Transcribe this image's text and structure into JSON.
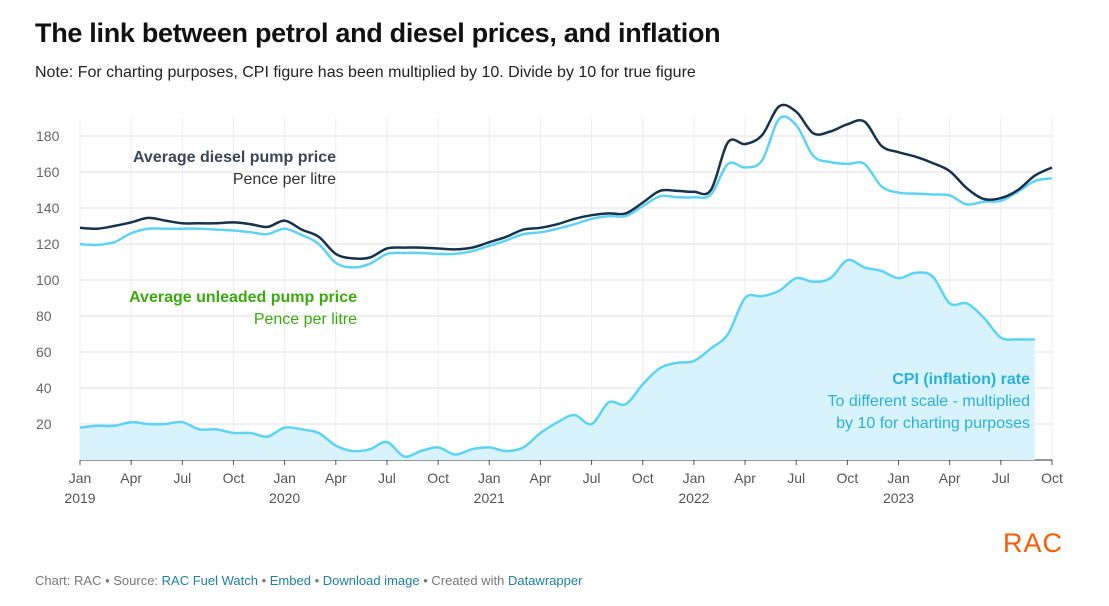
{
  "title": "The link between petrol and diesel prices, and inflation",
  "subtitle": "Note: For charting purposes, CPI figure has been multiplied by 10. Divide by 10 for true figure",
  "footer": {
    "prefix": "Chart: RAC • Source: ",
    "source_link": "RAC Fuel Watch",
    "sep1": " • ",
    "embed": "Embed",
    "sep2": " • ",
    "download": "Download image",
    "sep3": " • Created with ",
    "datawrapper": "Datawrapper"
  },
  "logo": "RAC",
  "colors": {
    "diesel": "#17324d",
    "unleaded": "#5ed3f6",
    "cpi_line": "#5ed3f6",
    "cpi_fill": "#d8f3fc",
    "unleaded_label": "#3aaa0f",
    "cpi_label": "#2ab0da"
  },
  "chart_data": {
    "type": "line",
    "ylim": [
      0,
      190
    ],
    "yticks": [
      20,
      40,
      60,
      80,
      100,
      120,
      140,
      160,
      180
    ],
    "xlim": [
      0,
      57
    ],
    "xticks": [
      {
        "m": 0,
        "label": "Jan",
        "year": "2019"
      },
      {
        "m": 3,
        "label": "Apr",
        "year": ""
      },
      {
        "m": 6,
        "label": "Jul",
        "year": ""
      },
      {
        "m": 9,
        "label": "Oct",
        "year": ""
      },
      {
        "m": 12,
        "label": "Jan",
        "year": "2020"
      },
      {
        "m": 15,
        "label": "Apr",
        "year": ""
      },
      {
        "m": 18,
        "label": "Jul",
        "year": ""
      },
      {
        "m": 21,
        "label": "Oct",
        "year": ""
      },
      {
        "m": 24,
        "label": "Jan",
        "year": "2021"
      },
      {
        "m": 27,
        "label": "Apr",
        "year": ""
      },
      {
        "m": 30,
        "label": "Jul",
        "year": ""
      },
      {
        "m": 33,
        "label": "Oct",
        "year": ""
      },
      {
        "m": 36,
        "label": "Jan",
        "year": "2022"
      },
      {
        "m": 39,
        "label": "Apr",
        "year": ""
      },
      {
        "m": 42,
        "label": "Jul",
        "year": ""
      },
      {
        "m": 45,
        "label": "Oct",
        "year": ""
      },
      {
        "m": 48,
        "label": "Jan",
        "year": "2023"
      },
      {
        "m": 51,
        "label": "Apr",
        "year": ""
      },
      {
        "m": 54,
        "label": "Jul",
        "year": ""
      },
      {
        "m": 57,
        "label": "Oct",
        "year": ""
      }
    ],
    "x_unit": "months since Jan 2019",
    "series": [
      {
        "name": "Average diesel pump price",
        "unit": "Pence per litre",
        "x": [
          0,
          1,
          2,
          3,
          4,
          5,
          6,
          7,
          8,
          9,
          10,
          11,
          12,
          13,
          14,
          15,
          16,
          17,
          18,
          19,
          20,
          21,
          22,
          23,
          24,
          25,
          26,
          27,
          28,
          29,
          30,
          31,
          32,
          33,
          34,
          35,
          36,
          37,
          38,
          39,
          40,
          41,
          42,
          43,
          44,
          45,
          46,
          47,
          48,
          49,
          50,
          51,
          52,
          53,
          54,
          55,
          56,
          57
        ],
        "values": [
          129,
          128.5,
          130,
          132,
          134.5,
          133,
          131.5,
          131.5,
          131.5,
          132,
          131,
          129.5,
          133,
          128,
          124,
          114.5,
          112,
          112.5,
          117.5,
          118,
          118,
          117.5,
          117,
          118,
          121,
          124,
          128,
          129,
          131,
          134,
          136,
          137,
          137,
          143,
          149.5,
          149.5,
          149,
          150,
          176.5,
          175.5,
          180.5,
          196.5,
          193.5,
          181.5,
          182.5,
          186.5,
          188,
          174.5,
          171,
          168.5,
          165,
          160.5,
          151,
          145,
          145.5,
          150,
          158,
          162.5
        ]
      },
      {
        "name": "Average unleaded pump price",
        "unit": "Pence per litre",
        "x": [
          0,
          1,
          2,
          3,
          4,
          5,
          6,
          7,
          8,
          9,
          10,
          11,
          12,
          13,
          14,
          15,
          16,
          17,
          18,
          19,
          20,
          21,
          22,
          23,
          24,
          25,
          26,
          27,
          28,
          29,
          30,
          31,
          32,
          33,
          34,
          35,
          36,
          37,
          38,
          39,
          40,
          41,
          42,
          43,
          44,
          45,
          46,
          47,
          48,
          49,
          50,
          51,
          52,
          53,
          54,
          55,
          56,
          57
        ],
        "values": [
          120,
          119.5,
          121,
          126,
          128.5,
          128.5,
          128.5,
          128.5,
          128,
          127.5,
          126.5,
          125.5,
          128.5,
          125,
          120,
          109.5,
          107,
          109,
          114.5,
          115,
          115,
          114.5,
          114.5,
          116,
          119,
          122,
          125.5,
          126.5,
          128.5,
          131,
          134,
          135.5,
          135.5,
          141,
          146.5,
          146,
          146,
          147.5,
          164.5,
          162.5,
          166.5,
          189.5,
          186,
          169,
          165.5,
          164.5,
          164.5,
          152,
          148.5,
          148,
          147.5,
          147,
          142,
          143.5,
          144,
          149,
          155,
          156.5
        ]
      },
      {
        "name": "CPI (inflation) rate",
        "unit": "multiplied by 10",
        "x": [
          0,
          1,
          2,
          3,
          4,
          5,
          6,
          7,
          8,
          9,
          10,
          11,
          12,
          13,
          14,
          15,
          16,
          17,
          18,
          19,
          20,
          21,
          22,
          23,
          24,
          25,
          26,
          27,
          28,
          29,
          30,
          31,
          32,
          33,
          34,
          35,
          36,
          37,
          38,
          39,
          40,
          41,
          42,
          43,
          44,
          45,
          46,
          47,
          48,
          49,
          50,
          51,
          52,
          53,
          54,
          55,
          56
        ],
        "values": [
          18,
          19,
          19,
          21,
          20,
          20,
          21,
          17,
          17,
          15,
          15,
          13,
          18,
          17,
          15,
          8,
          5,
          6,
          10,
          2,
          5,
          7,
          3,
          6,
          7,
          5,
          7,
          15,
          21,
          25,
          20,
          32,
          31,
          42,
          51,
          54,
          55,
          62,
          70,
          90,
          91,
          94,
          101,
          99,
          101,
          111,
          107,
          105,
          101,
          104,
          102,
          87,
          87,
          79,
          68,
          67,
          67
        ]
      }
    ],
    "labels": {
      "diesel_title": "Average diesel pump price",
      "diesel_unit": "Pence per litre",
      "unleaded_title": "Average unleaded pump price",
      "unleaded_unit": "Pence per litre",
      "cpi_title": "CPI (inflation) rate",
      "cpi_line1": "To different scale - multiplied",
      "cpi_line2": "by 10 for charting purposes"
    }
  }
}
